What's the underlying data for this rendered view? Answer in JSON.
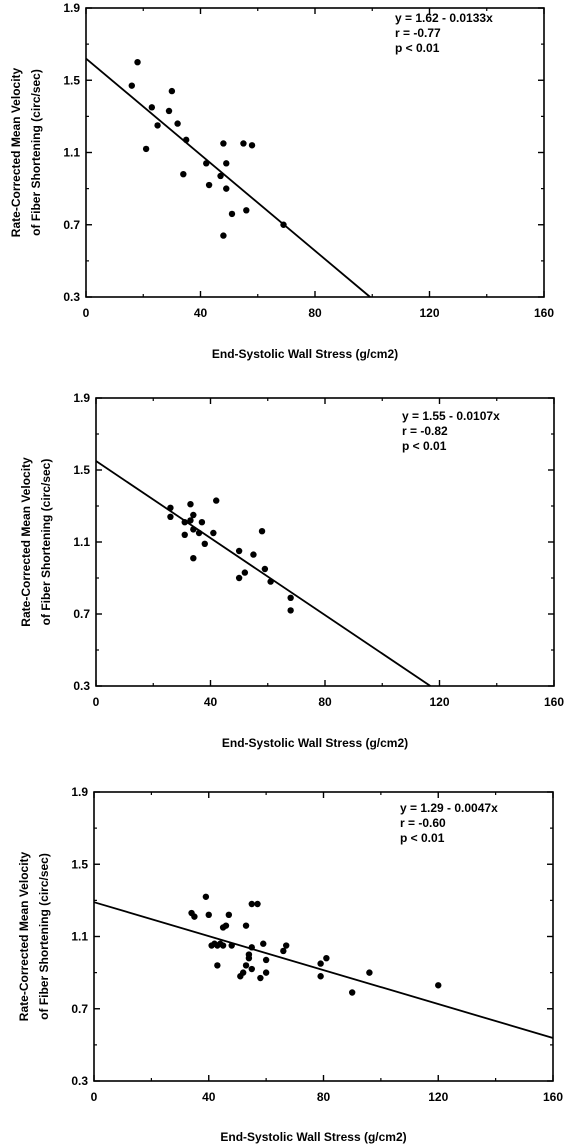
{
  "chart_data": [
    {
      "type": "scatter",
      "xlabel": "End-Systolic Wall Stress (g/cm2)",
      "ylabel": "Rate-Corrected Mean Velocity of Fiber Shortening (circ/sec)",
      "ylabel_lines": [
        "Rate-Corrected Mean Velocity",
        "of Fiber Shortening  (circ/sec)"
      ],
      "xlim": [
        0,
        160
      ],
      "ylim": [
        0.3,
        1.9
      ],
      "xticks": [
        0,
        40,
        80,
        120,
        160
      ],
      "yticks": [
        0.3,
        0.7,
        1.1,
        1.5,
        1.9
      ],
      "xtick_labels": [
        "0",
        "40",
        "80",
        "120",
        "160"
      ],
      "ytick_labels": [
        "0.3",
        "0.7",
        "1.1",
        "1.5",
        "1.9"
      ],
      "annotation": [
        "y = 1.62 - 0.0133x",
        "r = -0.77",
        "p < 0.01"
      ],
      "fit": {
        "intercept": 1.62,
        "slope": -0.0133
      },
      "points": [
        {
          "x": 16,
          "y": 1.47
        },
        {
          "x": 18,
          "y": 1.6
        },
        {
          "x": 21,
          "y": 1.12
        },
        {
          "x": 23,
          "y": 1.35
        },
        {
          "x": 25,
          "y": 1.25
        },
        {
          "x": 29,
          "y": 1.33
        },
        {
          "x": 30,
          "y": 1.44
        },
        {
          "x": 32,
          "y": 1.26
        },
        {
          "x": 34,
          "y": 0.98
        },
        {
          "x": 35,
          "y": 1.17
        },
        {
          "x": 42,
          "y": 1.04
        },
        {
          "x": 43,
          "y": 0.92
        },
        {
          "x": 47,
          "y": 0.97
        },
        {
          "x": 48,
          "y": 1.15
        },
        {
          "x": 49,
          "y": 1.04
        },
        {
          "x": 49,
          "y": 0.9
        },
        {
          "x": 51,
          "y": 0.76
        },
        {
          "x": 48,
          "y": 0.64
        },
        {
          "x": 55,
          "y": 1.15
        },
        {
          "x": 56,
          "y": 0.78
        },
        {
          "x": 58,
          "y": 1.14
        },
        {
          "x": 69,
          "y": 0.7
        }
      ]
    },
    {
      "type": "scatter",
      "xlabel": "End-Systolic Wall Stress (g/cm2)",
      "ylabel": "Rate-Corrected Mean Velocity of Fiber Shortening (circ/sec)",
      "ylabel_lines": [
        "Rate-Corrected Mean Velocity",
        "of Fiber Shortening  (circ/sec)"
      ],
      "xlim": [
        0,
        160
      ],
      "ylim": [
        0.3,
        1.9
      ],
      "xticks": [
        0,
        40,
        80,
        120,
        160
      ],
      "yticks": [
        0.3,
        0.7,
        1.1,
        1.5,
        1.9
      ],
      "xtick_labels": [
        "0",
        "40",
        "80",
        "120",
        "160"
      ],
      "ytick_labels": [
        "0.3",
        "0.7",
        "1.1",
        "1.5",
        "1.9"
      ],
      "annotation": [
        "y = 1.55 - 0.0107x",
        "r = -0.82",
        "p < 0.01"
      ],
      "fit": {
        "intercept": 1.55,
        "slope": -0.0107
      },
      "points": [
        {
          "x": 26,
          "y": 1.29
        },
        {
          "x": 26,
          "y": 1.24
        },
        {
          "x": 31,
          "y": 1.21
        },
        {
          "x": 31,
          "y": 1.14
        },
        {
          "x": 33,
          "y": 1.31
        },
        {
          "x": 33,
          "y": 1.22
        },
        {
          "x": 34,
          "y": 1.25
        },
        {
          "x": 34,
          "y": 1.17
        },
        {
          "x": 34,
          "y": 1.01
        },
        {
          "x": 36,
          "y": 1.15
        },
        {
          "x": 37,
          "y": 1.21
        },
        {
          "x": 38,
          "y": 1.09
        },
        {
          "x": 41,
          "y": 1.15
        },
        {
          "x": 42,
          "y": 1.33
        },
        {
          "x": 50,
          "y": 1.05
        },
        {
          "x": 50,
          "y": 0.9
        },
        {
          "x": 52,
          "y": 0.93
        },
        {
          "x": 55,
          "y": 1.03
        },
        {
          "x": 58,
          "y": 1.16
        },
        {
          "x": 59,
          "y": 0.95
        },
        {
          "x": 61,
          "y": 0.88
        },
        {
          "x": 68,
          "y": 0.79
        },
        {
          "x": 68,
          "y": 0.72
        }
      ]
    },
    {
      "type": "scatter",
      "xlabel": "End-Systolic Wall Stress (g/cm2)",
      "ylabel": "Rate-Corrected Mean Velocity of Fiber Shortening (circ/sec)",
      "ylabel_lines": [
        "Rate-Corrected Mean Velocity",
        "of Fiber Shortening  (circ/sec)"
      ],
      "xlim": [
        0,
        160
      ],
      "ylim": [
        0.3,
        1.9
      ],
      "xticks": [
        0,
        40,
        80,
        120,
        160
      ],
      "yticks": [
        0.3,
        0.7,
        1.1,
        1.5,
        1.9
      ],
      "xtick_labels": [
        "0",
        "40",
        "80",
        "120",
        "160"
      ],
      "ytick_labels": [
        "0.3",
        "0.7",
        "1.1",
        "1.5",
        "1.9"
      ],
      "annotation": [
        "y = 1.29 - 0.0047x",
        "r = -0.60",
        "p < 0.01"
      ],
      "fit": {
        "intercept": 1.29,
        "slope": -0.0047
      },
      "points": [
        {
          "x": 34,
          "y": 1.23
        },
        {
          "x": 35,
          "y": 1.21
        },
        {
          "x": 39,
          "y": 1.32
        },
        {
          "x": 40,
          "y": 1.22
        },
        {
          "x": 41,
          "y": 1.05
        },
        {
          "x": 42,
          "y": 1.06
        },
        {
          "x": 43,
          "y": 1.05
        },
        {
          "x": 43,
          "y": 0.94
        },
        {
          "x": 44,
          "y": 1.06
        },
        {
          "x": 45,
          "y": 1.05
        },
        {
          "x": 45,
          "y": 1.15
        },
        {
          "x": 46,
          "y": 1.16
        },
        {
          "x": 47,
          "y": 1.22
        },
        {
          "x": 48,
          "y": 1.05
        },
        {
          "x": 51,
          "y": 0.88
        },
        {
          "x": 52,
          "y": 0.9
        },
        {
          "x": 53,
          "y": 0.94
        },
        {
          "x": 53,
          "y": 1.16
        },
        {
          "x": 54,
          "y": 1.0
        },
        {
          "x": 54,
          "y": 0.98
        },
        {
          "x": 55,
          "y": 0.92
        },
        {
          "x": 55,
          "y": 1.04
        },
        {
          "x": 55,
          "y": 1.28
        },
        {
          "x": 57,
          "y": 1.28
        },
        {
          "x": 58,
          "y": 0.87
        },
        {
          "x": 59,
          "y": 1.06
        },
        {
          "x": 60,
          "y": 0.97
        },
        {
          "x": 60,
          "y": 0.9
        },
        {
          "x": 66,
          "y": 1.02
        },
        {
          "x": 67,
          "y": 1.05
        },
        {
          "x": 79,
          "y": 0.95
        },
        {
          "x": 79,
          "y": 0.88
        },
        {
          "x": 81,
          "y": 0.98
        },
        {
          "x": 90,
          "y": 0.79
        },
        {
          "x": 96,
          "y": 0.9
        },
        {
          "x": 120,
          "y": 0.83
        }
      ]
    }
  ]
}
